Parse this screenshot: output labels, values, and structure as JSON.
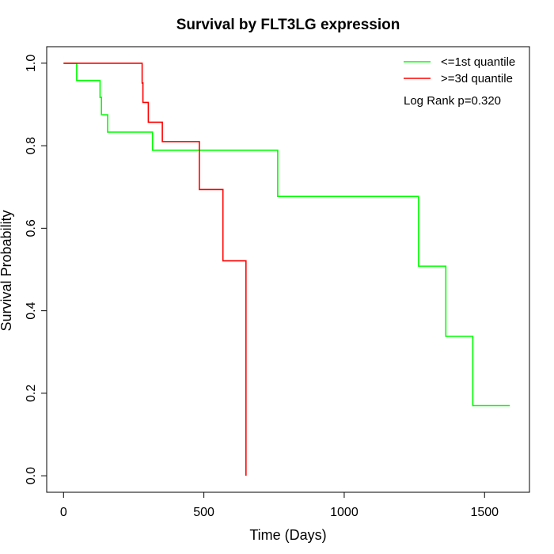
{
  "chart_data": {
    "type": "line",
    "title": "Survival by FLT3LG expression",
    "xlabel": "Time (Days)",
    "ylabel": "Survival Probability",
    "xlim": [
      -60,
      1660
    ],
    "ylim": [
      -0.04,
      1.04
    ],
    "x_ticks": [
      0,
      500,
      1000,
      1500
    ],
    "y_ticks": [
      0.0,
      0.2,
      0.4,
      0.6,
      0.8,
      1.0
    ],
    "x_tick_labels": [
      "0",
      "500",
      "1000",
      "1500"
    ],
    "y_tick_labels": [
      "0.0",
      "0.2",
      "0.4",
      "0.6",
      "0.8",
      "1.0"
    ],
    "legend_position": "top-right",
    "annotation": "Log Rank p=0.320",
    "grid": false,
    "series": [
      {
        "name": "<=1st quantile",
        "color": "#00ff00",
        "steps": [
          [
            0,
            1.0
          ],
          [
            47,
            0.958
          ],
          [
            130,
            0.917
          ],
          [
            135,
            0.875
          ],
          [
            157,
            0.833
          ],
          [
            317,
            0.789
          ],
          [
            763,
            0.677
          ],
          [
            1265,
            0.508
          ],
          [
            1362,
            0.338
          ],
          [
            1458,
            0.17
          ],
          [
            1590,
            0.17
          ]
        ]
      },
      {
        "name": ">=3d quantile",
        "color": "#ff0000",
        "steps": [
          [
            0,
            1.0
          ],
          [
            280,
            0.952
          ],
          [
            283,
            0.905
          ],
          [
            302,
            0.857
          ],
          [
            352,
            0.81
          ],
          [
            484,
            0.694
          ],
          [
            568,
            0.521
          ],
          [
            650,
            0.0
          ]
        ]
      }
    ]
  }
}
